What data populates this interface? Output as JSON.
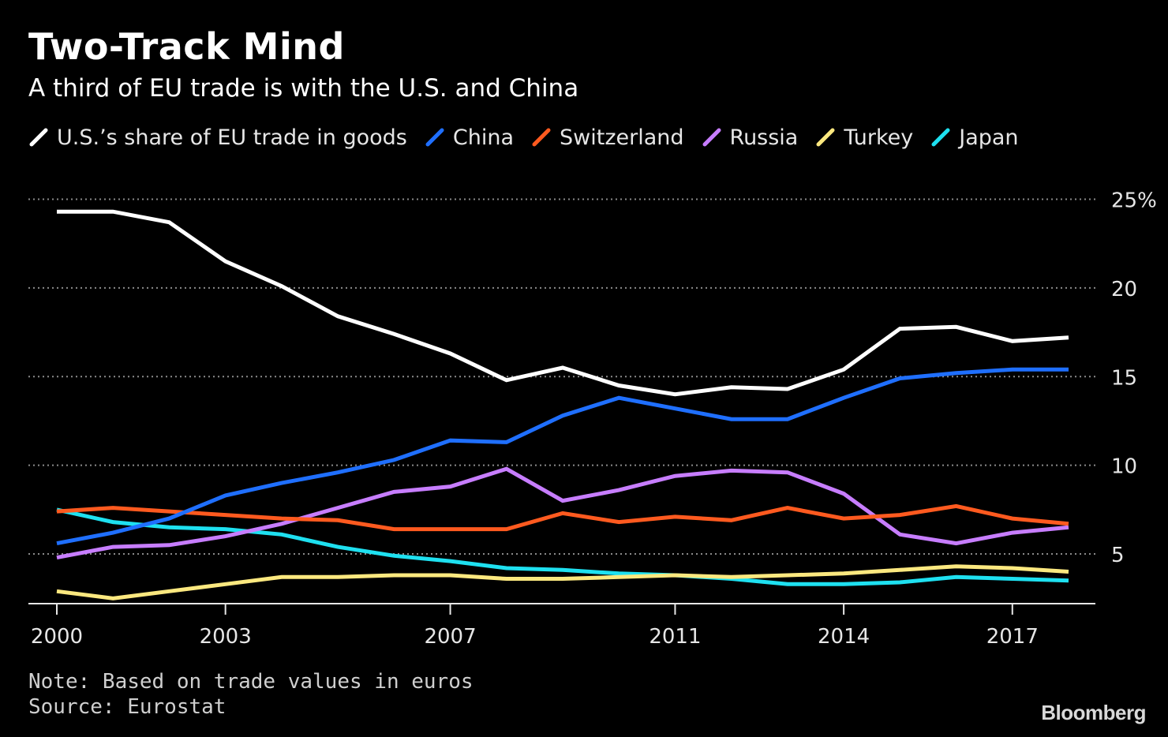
{
  "title": "Two-Track Mind",
  "subtitle": "A third of EU trade is with the U.S. and China",
  "note": "Note: Based on trade values in euros",
  "source": "Source: Eurostat",
  "brand": "Bloomberg",
  "chart_data": {
    "type": "line",
    "title": "Two-Track Mind",
    "subtitle": "A third of EU trade is with the U.S. and China",
    "xlabel": "",
    "ylabel": "",
    "x": [
      2000,
      2001,
      2002,
      2003,
      2004,
      2005,
      2006,
      2007,
      2008,
      2009,
      2010,
      2011,
      2012,
      2013,
      2014,
      2015,
      2016,
      2017,
      2018
    ],
    "xlim": [
      2000,
      2018.85
    ],
    "ylim": [
      2.2,
      26
    ],
    "x_ticks": [
      2000,
      2003,
      2007,
      2011,
      2014,
      2017
    ],
    "x_tick_labels": [
      "2000",
      "2003",
      "2007",
      "2011",
      "2014",
      "2017"
    ],
    "y_ticks": [
      5,
      10,
      15,
      20,
      25
    ],
    "y_tick_labels": [
      "5",
      "10",
      "15",
      "20",
      "25%"
    ],
    "grid": "horizontal dotted",
    "legend_position": "top-left",
    "series": [
      {
        "name": "U.S.’s share of EU trade in goods",
        "color": "#ffffff",
        "values": [
          24.3,
          24.3,
          23.7,
          21.5,
          20.1,
          18.4,
          17.4,
          16.3,
          14.8,
          15.5,
          14.5,
          14.0,
          14.4,
          14.3,
          15.4,
          17.7,
          17.8,
          17.0,
          17.2
        ]
      },
      {
        "name": "China",
        "color": "#1f6fff",
        "values": [
          5.6,
          6.2,
          7.0,
          8.3,
          9.0,
          9.6,
          10.3,
          11.4,
          11.3,
          12.8,
          13.8,
          13.2,
          12.6,
          12.6,
          13.8,
          14.9,
          15.2,
          15.4,
          15.4
        ]
      },
      {
        "name": "Switzerland",
        "color": "#ff5a1f",
        "values": [
          7.4,
          7.6,
          7.4,
          7.2,
          7.0,
          6.9,
          6.4,
          6.4,
          6.4,
          7.3,
          6.8,
          7.1,
          6.9,
          7.6,
          7.0,
          7.2,
          7.7,
          7.0,
          6.7
        ]
      },
      {
        "name": "Russia",
        "color": "#c77dff",
        "values": [
          4.8,
          5.4,
          5.5,
          6.0,
          6.7,
          7.6,
          8.5,
          8.8,
          9.8,
          8.0,
          8.6,
          9.4,
          9.7,
          9.6,
          8.4,
          6.1,
          5.6,
          6.2,
          6.5
        ]
      },
      {
        "name": "Turkey",
        "color": "#fbe87f",
        "values": [
          2.9,
          2.5,
          2.9,
          3.3,
          3.7,
          3.7,
          3.8,
          3.8,
          3.6,
          3.6,
          3.7,
          3.8,
          3.7,
          3.8,
          3.9,
          4.1,
          4.3,
          4.2,
          4.0
        ]
      },
      {
        "name": "Japan",
        "color": "#1ee0f0",
        "values": [
          7.5,
          6.8,
          6.5,
          6.4,
          6.1,
          5.4,
          4.9,
          4.6,
          4.2,
          4.1,
          3.9,
          3.8,
          3.6,
          3.3,
          3.3,
          3.4,
          3.7,
          3.6,
          3.5
        ]
      }
    ]
  }
}
